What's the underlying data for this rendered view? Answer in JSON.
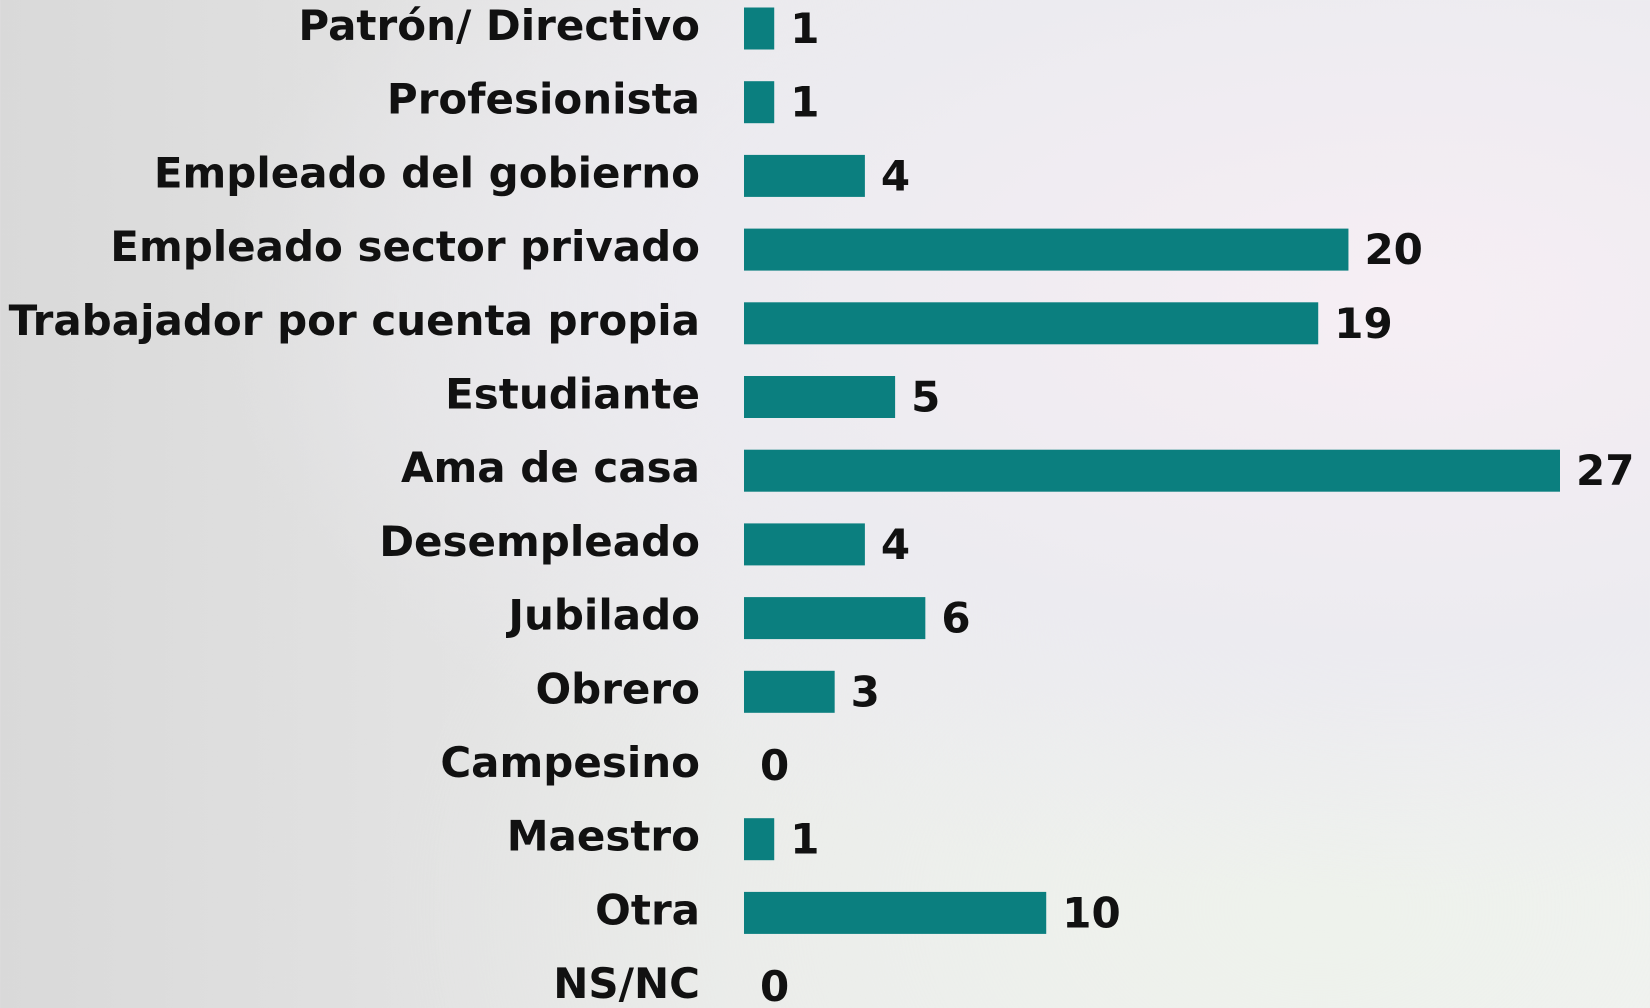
{
  "chart_data": {
    "type": "bar",
    "orientation": "horizontal",
    "categories": [
      "Patrón/ Directivo",
      "Profesionista",
      "Empleado del gobierno",
      "Empleado sector privado",
      "Trabajador por cuenta propia",
      "Estudiante",
      "Ama de casa",
      "Desempleado",
      "Jubilado",
      "Obrero",
      "Campesino",
      "Maestro",
      "Otra",
      "NS/NC"
    ],
    "values": [
      1,
      1,
      4,
      20,
      19,
      5,
      27,
      4,
      6,
      3,
      0,
      1,
      10,
      0
    ],
    "color": "#0b7f7f"
  }
}
